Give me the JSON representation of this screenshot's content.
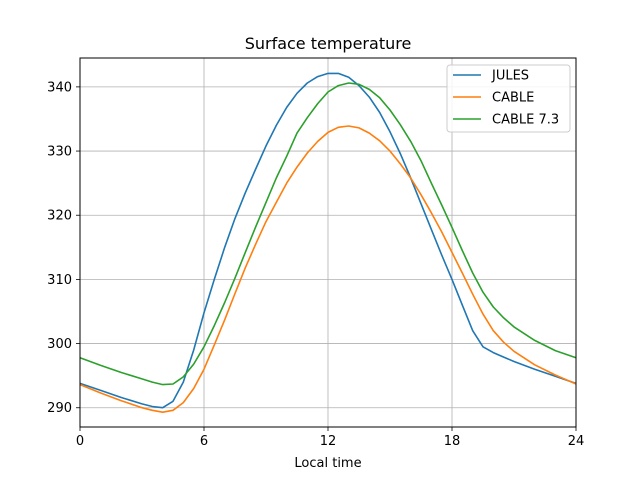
{
  "chart_data": {
    "type": "line",
    "title": "Surface temperature",
    "xlabel": "Local time",
    "ylabel": "",
    "xlim": [
      0,
      24
    ],
    "ylim": [
      287,
      344.5
    ],
    "xticks": [
      0,
      6,
      12,
      18,
      24
    ],
    "xtick_labels": [
      "0",
      "6",
      "12",
      "18",
      "24"
    ],
    "yticks": [
      290,
      300,
      310,
      320,
      330,
      340
    ],
    "ytick_labels": [
      "290",
      "300",
      "310",
      "320",
      "330",
      "340"
    ],
    "grid": true,
    "legend_position": "top-right",
    "series": [
      {
        "name": "JULES",
        "color": "#1f77b4",
        "x": [
          0,
          1,
          2,
          3,
          3.5,
          4,
          4.5,
          5,
          5.5,
          6,
          6.5,
          7,
          7.5,
          8,
          8.5,
          9,
          9.5,
          10,
          10.5,
          11,
          11.5,
          12,
          12.5,
          13,
          13.5,
          14,
          14.5,
          15,
          15.5,
          16,
          16.5,
          17,
          17.5,
          18,
          18.5,
          19,
          19.5,
          20,
          20.5,
          21,
          22,
          23,
          24
        ],
        "y": [
          293.8,
          292.7,
          291.6,
          290.6,
          290.2,
          290.0,
          291.0,
          294.0,
          299.0,
          304.8,
          310.0,
          315.0,
          319.5,
          323.5,
          327.2,
          330.8,
          334.0,
          336.8,
          339.0,
          340.6,
          341.6,
          342.1,
          342.1,
          341.5,
          340.2,
          338.4,
          336.0,
          333.0,
          329.6,
          325.8,
          321.8,
          317.8,
          313.8,
          310.0,
          306.0,
          302.0,
          299.5,
          298.6,
          297.9,
          297.2,
          296.0,
          294.9,
          293.8
        ]
      },
      {
        "name": "CABLE",
        "color": "#ff7f0e",
        "x": [
          0,
          1,
          2,
          3,
          3.5,
          4,
          4.5,
          5,
          5.5,
          6,
          6.5,
          7,
          7.5,
          8,
          8.5,
          9,
          9.5,
          10,
          10.5,
          11,
          11.5,
          12,
          12.5,
          13,
          13.5,
          14,
          14.5,
          15,
          15.5,
          16,
          16.5,
          17,
          17.5,
          18,
          18.5,
          19,
          19.5,
          20,
          20.5,
          21,
          22,
          23,
          24
        ],
        "y": [
          293.6,
          292.3,
          291.1,
          290.0,
          289.6,
          289.3,
          289.6,
          290.8,
          293.0,
          296.0,
          299.8,
          303.7,
          307.8,
          311.8,
          315.5,
          319.0,
          322.0,
          325.0,
          327.5,
          329.7,
          331.5,
          332.9,
          333.7,
          333.9,
          333.6,
          332.8,
          331.6,
          330.0,
          328.0,
          325.8,
          323.2,
          320.4,
          317.4,
          314.2,
          311.0,
          307.7,
          304.6,
          302.0,
          300.2,
          298.8,
          296.7,
          295.1,
          293.7
        ]
      },
      {
        "name": "CABLE 7.3",
        "color": "#2ca02c",
        "x": [
          0,
          1,
          2,
          3,
          3.5,
          4,
          4.5,
          5,
          5.5,
          6,
          6.5,
          7,
          7.5,
          8,
          8.5,
          9,
          9.5,
          10,
          10.5,
          11,
          11.5,
          12,
          12.5,
          13,
          13.5,
          14,
          14.5,
          15,
          15.5,
          16,
          16.5,
          17,
          17.5,
          18,
          18.5,
          19,
          19.5,
          20,
          20.5,
          21,
          22,
          23,
          24
        ],
        "y": [
          297.8,
          296.6,
          295.5,
          294.5,
          294.0,
          293.6,
          293.7,
          294.8,
          296.8,
          299.5,
          302.8,
          306.4,
          310.2,
          314.2,
          318.2,
          322.0,
          325.8,
          329.2,
          332.8,
          335.2,
          337.4,
          339.2,
          340.2,
          340.6,
          340.4,
          339.6,
          338.3,
          336.4,
          334.1,
          331.5,
          328.5,
          325.0,
          321.6,
          318.1,
          314.5,
          311.0,
          308.0,
          305.7,
          304.0,
          302.6,
          300.5,
          298.9,
          297.8
        ]
      }
    ]
  }
}
